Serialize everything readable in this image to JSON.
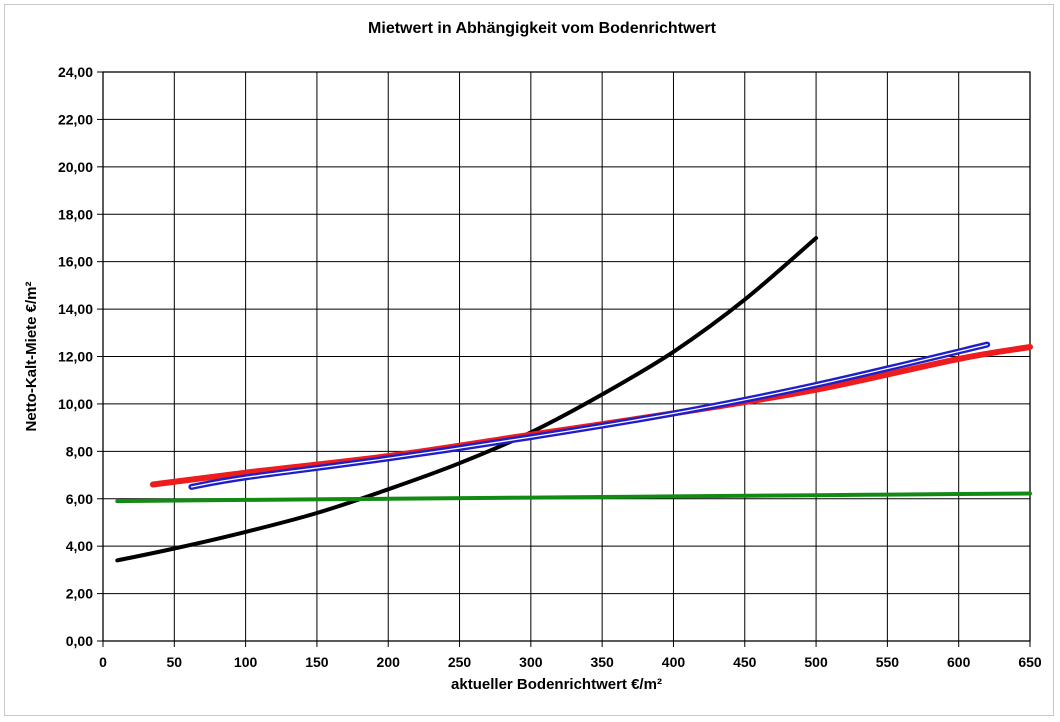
{
  "chart_data": {
    "type": "line",
    "title": "Mietwert in Abhängigkeit  vom Bodenrichtwert",
    "xlabel": "aktueller Bodenrichtwert  €/m²",
    "ylabel": "Netto-Kalt-Miete €/m²",
    "xlim": [
      0,
      650
    ],
    "ylim": [
      0,
      24
    ],
    "xticks": [
      0,
      50,
      100,
      150,
      200,
      250,
      300,
      350,
      400,
      450,
      500,
      550,
      600,
      650
    ],
    "xtick_labels": [
      "0",
      "50",
      "100",
      "150",
      "200",
      "250",
      "300",
      "350",
      "400",
      "450",
      "500",
      "550",
      "600",
      "650"
    ],
    "yticks": [
      0,
      2,
      4,
      6,
      8,
      10,
      12,
      14,
      16,
      18,
      20,
      22,
      24
    ],
    "ytick_labels": [
      "0,00",
      "2,00",
      "4,00",
      "6,00",
      "8,00",
      "10,00",
      "12,00",
      "14,00",
      "16,00",
      "18,00",
      "20,00",
      "22,00",
      "24,00"
    ],
    "grid": true,
    "series": [
      {
        "color": "#000000",
        "stroke": 4,
        "x": [
          10,
          50,
          100,
          150,
          200,
          250,
          300,
          350,
          400,
          450,
          500
        ],
        "y": [
          3.4,
          3.9,
          4.6,
          5.4,
          6.4,
          7.5,
          8.8,
          10.4,
          12.2,
          14.4,
          17.0
        ]
      },
      {
        "color": "#ee1c1c",
        "stroke": 6,
        "x": [
          35,
          100,
          200,
          300,
          400,
          500,
          600,
          650
        ],
        "y": [
          6.6,
          7.1,
          7.8,
          8.7,
          9.6,
          10.6,
          11.9,
          12.4
        ]
      },
      {
        "color": "#1f1fc8",
        "stroke": 3,
        "double": true,
        "x": [
          62,
          100,
          200,
          300,
          400,
          500,
          620
        ],
        "y": [
          6.5,
          6.9,
          7.7,
          8.6,
          9.6,
          10.8,
          12.5
        ]
      },
      {
        "color": "#138a13",
        "stroke": 4,
        "x": [
          10,
          100,
          200,
          300,
          400,
          500,
          600,
          650
        ],
        "y": [
          5.9,
          5.95,
          6.0,
          6.05,
          6.1,
          6.15,
          6.2,
          6.22
        ]
      }
    ]
  }
}
